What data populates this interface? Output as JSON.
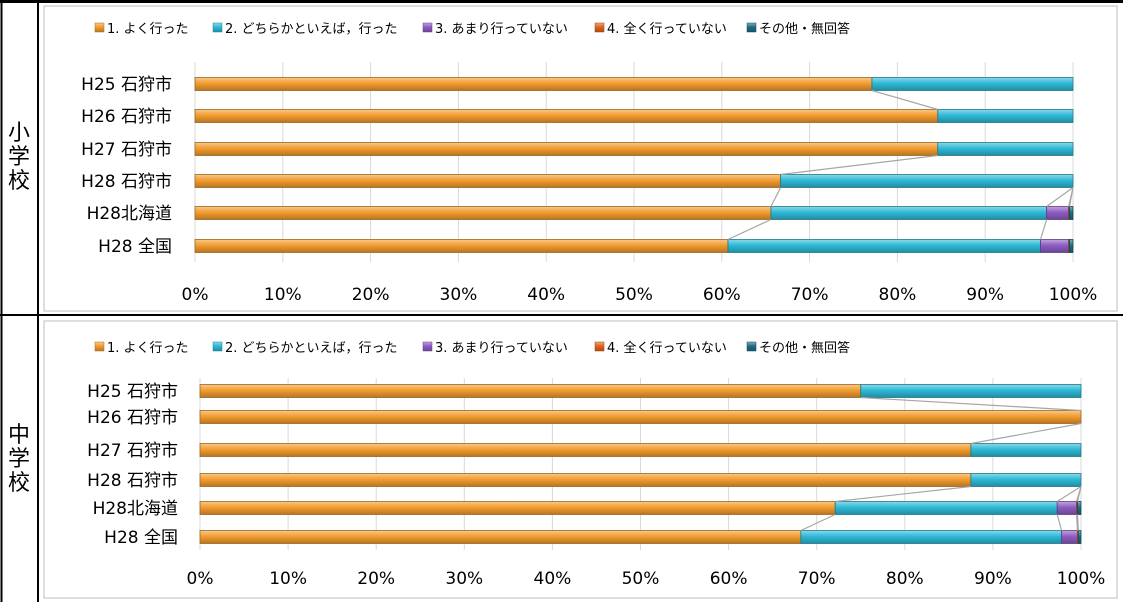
{
  "sections": [
    {
      "side_label": [
        "小",
        "学",
        "校"
      ]
    },
    {
      "side_label": [
        "中",
        "学",
        "校"
      ]
    }
  ],
  "chart_data": [
    {
      "type": "bar",
      "orientation": "horizontal",
      "stacked": true,
      "percent": true,
      "categories": [
        "H25 石狩市",
        "H26 石狩市",
        "H27 石狩市",
        "H28 石狩市",
        "H28北海道",
        "H28 全国"
      ],
      "series": [
        {
          "name": "1. よく行った",
          "color": "#F39C2E",
          "values": [
            77.1,
            84.6,
            84.6,
            66.7,
            65.6,
            60.7
          ]
        },
        {
          "name": "2. どちらかといえば，行った",
          "color": "#2EB9D6",
          "values": [
            22.9,
            15.4,
            15.4,
            33.3,
            31.4,
            35.6
          ]
        },
        {
          "name": "3. あまり行っていない",
          "color": "#8E5CC4",
          "values": [
            0,
            0,
            0,
            0,
            2.5,
            3.2
          ]
        },
        {
          "name": "4. 全く行っていない",
          "color": "#E2641B",
          "values": [
            0,
            0,
            0,
            0,
            0.1,
            0.1
          ]
        },
        {
          "name": "その他・無回答",
          "color": "#1E6E86",
          "values": [
            0,
            0,
            0,
            0,
            0.4,
            0.4
          ]
        }
      ],
      "xlim": [
        0,
        100
      ],
      "x_ticks": [
        "0%",
        "10%",
        "20%",
        "30%",
        "40%",
        "50%",
        "60%",
        "70%",
        "80%",
        "90%",
        "100%"
      ],
      "legend_position": "top",
      "grid": "vertical"
    },
    {
      "type": "bar",
      "orientation": "horizontal",
      "stacked": true,
      "percent": true,
      "categories": [
        "H25 石狩市",
        "H26 石狩市",
        "H27 石狩市",
        "H28 石狩市",
        "H28北海道",
        "H28 全国"
      ],
      "series": [
        {
          "name": "1. よく行った",
          "color": "#F39C2E",
          "values": [
            75.0,
            100,
            87.5,
            87.5,
            72.1,
            68.2
          ]
        },
        {
          "name": "2. どちらかといえば，行った",
          "color": "#2EB9D6",
          "values": [
            25.0,
            0,
            12.5,
            12.5,
            25.2,
            29.6
          ]
        },
        {
          "name": "3. あまり行っていない",
          "color": "#8E5CC4",
          "values": [
            0,
            0,
            0,
            0,
            2.2,
            1.8
          ]
        },
        {
          "name": "4. 全く行っていない",
          "color": "#E2641B",
          "values": [
            0,
            0,
            0,
            0,
            0.1,
            0.1
          ]
        },
        {
          "name": "その他・無回答",
          "color": "#1E6E86",
          "values": [
            0,
            0,
            0,
            0,
            0.4,
            0.3
          ]
        }
      ],
      "xlim": [
        0,
        100
      ],
      "x_ticks": [
        "0%",
        "10%",
        "20%",
        "30%",
        "40%",
        "50%",
        "60%",
        "70%",
        "80%",
        "90%",
        "100%"
      ],
      "legend_position": "top",
      "grid": "vertical"
    }
  ]
}
